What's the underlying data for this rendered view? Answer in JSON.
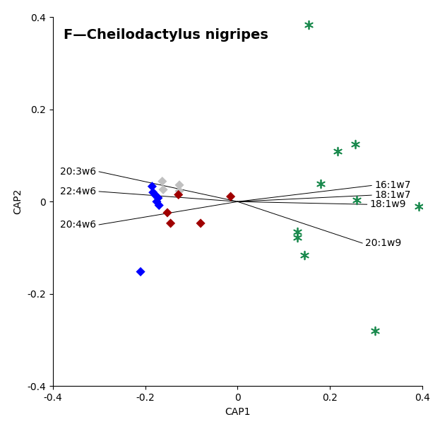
{
  "chart_data": {
    "type": "scatter",
    "title": "F—Cheilodactylus nigripes",
    "x_label": "CAP1",
    "y_label": "CAP2",
    "xlim": [
      -0.4,
      0.4
    ],
    "ylim": [
      -0.4,
      0.4
    ],
    "xticks": [
      -0.4,
      -0.2,
      0,
      0.2,
      0.4
    ],
    "yticks": [
      -0.4,
      -0.2,
      0,
      0.2,
      0.4
    ],
    "grid": false,
    "series": [
      {
        "color": "#0000ff",
        "marker": "diamond",
        "x": [
          -0.185,
          -0.183,
          -0.178,
          -0.172,
          -0.175,
          -0.17,
          -0.21
        ],
        "y": [
          0.033,
          0.02,
          0.014,
          0.008,
          0.0,
          -0.008,
          -0.152
        ]
      },
      {
        "color": "#c0c0c0",
        "marker": "diamond",
        "x": [
          -0.163,
          -0.161,
          -0.126,
          -0.126
        ],
        "y": [
          0.044,
          0.026,
          0.036,
          0.023
        ]
      },
      {
        "color": "#a00000",
        "marker": "diamond",
        "x": [
          -0.128,
          -0.152,
          -0.145,
          -0.08,
          -0.015
        ],
        "y": [
          0.015,
          -0.024,
          -0.047,
          -0.047,
          0.011
        ]
      },
      {
        "color": "#1b8a4e",
        "marker": "asterisk",
        "x": [
          0.154,
          0.216,
          0.255,
          0.18,
          0.258,
          0.392,
          0.13,
          0.13,
          0.145,
          0.298
        ],
        "y": [
          0.383,
          0.11,
          0.125,
          0.038,
          0.003,
          -0.011,
          -0.065,
          -0.078,
          -0.116,
          -0.28
        ]
      }
    ],
    "vectors": [
      {
        "label": "20:3w6",
        "x": -0.3,
        "y": 0.065
      },
      {
        "label": "22:4w6",
        "x": -0.3,
        "y": 0.022
      },
      {
        "label": "20:4w6",
        "x": -0.3,
        "y": -0.05
      },
      {
        "label": "16:1w7",
        "x": 0.29,
        "y": 0.035
      },
      {
        "label": "18:1w7",
        "x": 0.29,
        "y": 0.014
      },
      {
        "label": "18:1w9",
        "x": 0.28,
        "y": -0.006
      },
      {
        "label": "20:1w9",
        "x": 0.27,
        "y": -0.09
      }
    ]
  }
}
